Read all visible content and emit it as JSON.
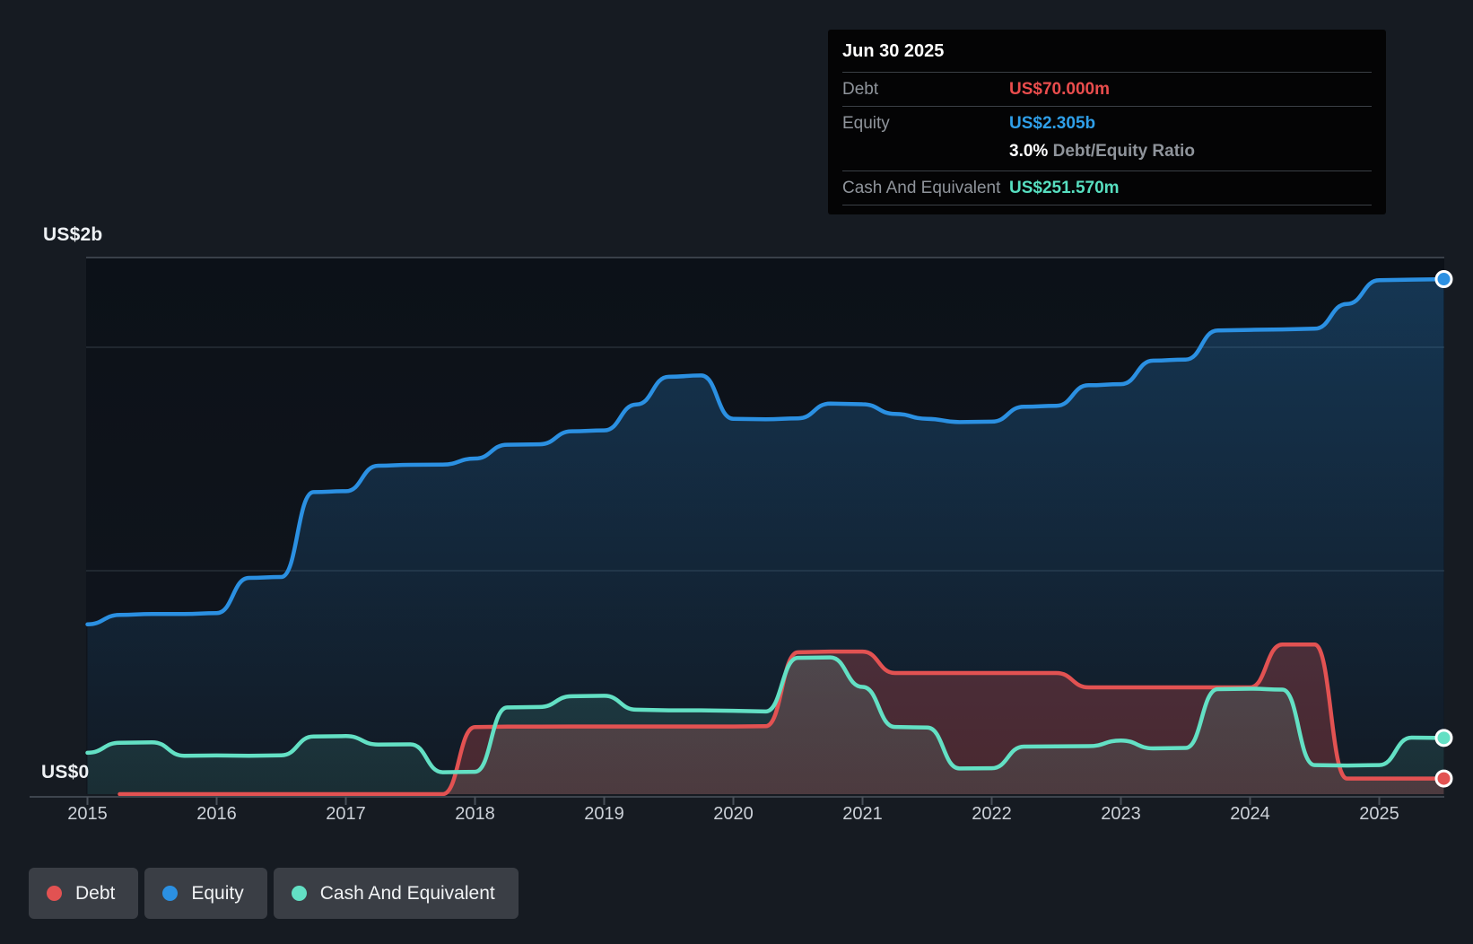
{
  "tooltip": {
    "date": "Jun 30 2025",
    "debt_label": "Debt",
    "debt_value": "US$70.000m",
    "equity_label": "Equity",
    "equity_value": "US$2.305b",
    "ratio_value": "3.0%",
    "ratio_label": "Debt/Equity Ratio",
    "cash_label": "Cash And Equivalent",
    "cash_value": "US$251.570m"
  },
  "y_axis": {
    "top": "US$2b",
    "bottom": "US$0"
  },
  "x_axis": {
    "years": [
      "2015",
      "2016",
      "2017",
      "2018",
      "2019",
      "2020",
      "2021",
      "2022",
      "2023",
      "2024",
      "2025"
    ]
  },
  "legend": [
    {
      "label": "Debt",
      "color": "#e25252"
    },
    {
      "label": "Equity",
      "color": "#2b90e2"
    },
    {
      "label": "Cash And Equivalent",
      "color": "#63e0c4"
    }
  ],
  "colors": {
    "debt": "#e25252",
    "equity": "#2b90e2",
    "cash": "#63e0c4",
    "debt_value_text": "#ea4d4d",
    "equity_value_text": "#2f9fe9",
    "cash_value_text": "#57dfc0"
  },
  "chart_data": {
    "type": "line",
    "title": "Debt to Equity History (US$ millions)",
    "x_range": [
      2015.0,
      2025.5
    ],
    "ylim": [
      0,
      2400
    ],
    "unit": "US$m",
    "grid_on": true,
    "legend_position": "bottom-left",
    "y_gridlines": [
      {
        "label": "US$2b",
        "value": 2000
      },
      {
        "label": "",
        "value": 1000
      },
      {
        "label": "US$0",
        "value": 0
      }
    ],
    "series": [
      {
        "name": "Equity",
        "color": "#2b90e2",
        "points": [
          [
            2015.0,
            760
          ],
          [
            2015.25,
            802
          ],
          [
            2015.5,
            806
          ],
          [
            2015.75,
            806
          ],
          [
            2016.0,
            810
          ],
          [
            2016.25,
            968
          ],
          [
            2016.5,
            972
          ],
          [
            2016.75,
            1352
          ],
          [
            2017.0,
            1356
          ],
          [
            2017.25,
            1470
          ],
          [
            2017.5,
            1474
          ],
          [
            2017.75,
            1475
          ],
          [
            2018.0,
            1502
          ],
          [
            2018.25,
            1564
          ],
          [
            2018.5,
            1566
          ],
          [
            2018.75,
            1624
          ],
          [
            2019.0,
            1628
          ],
          [
            2019.25,
            1744
          ],
          [
            2019.5,
            1868
          ],
          [
            2019.75,
            1874
          ],
          [
            2020.0,
            1680
          ],
          [
            2020.25,
            1678
          ],
          [
            2020.5,
            1682
          ],
          [
            2020.75,
            1748
          ],
          [
            2021.0,
            1745
          ],
          [
            2021.25,
            1702
          ],
          [
            2021.5,
            1680
          ],
          [
            2021.75,
            1665
          ],
          [
            2022.0,
            1667
          ],
          [
            2022.25,
            1734
          ],
          [
            2022.5,
            1738
          ],
          [
            2022.75,
            1830
          ],
          [
            2023.0,
            1835
          ],
          [
            2023.25,
            1940
          ],
          [
            2023.5,
            1945
          ],
          [
            2023.75,
            2075
          ],
          [
            2024.0,
            2078
          ],
          [
            2024.25,
            2080
          ],
          [
            2024.5,
            2083
          ],
          [
            2024.75,
            2194
          ],
          [
            2025.0,
            2300
          ],
          [
            2025.25,
            2303
          ],
          [
            2025.5,
            2305
          ]
        ]
      },
      {
        "name": "Debt",
        "color": "#e25252",
        "points": [
          [
            2015.25,
            0
          ],
          [
            2015.5,
            0
          ],
          [
            2015.75,
            0
          ],
          [
            2016.0,
            0
          ],
          [
            2016.25,
            0
          ],
          [
            2016.5,
            0
          ],
          [
            2016.75,
            0
          ],
          [
            2017.0,
            0
          ],
          [
            2017.25,
            0
          ],
          [
            2017.5,
            0
          ],
          [
            2017.75,
            0
          ],
          [
            2018.0,
            300
          ],
          [
            2018.25,
            302
          ],
          [
            2018.5,
            302
          ],
          [
            2018.75,
            303
          ],
          [
            2019.0,
            303
          ],
          [
            2019.25,
            303
          ],
          [
            2019.5,
            303
          ],
          [
            2019.75,
            303
          ],
          [
            2020.0,
            303
          ],
          [
            2020.25,
            304
          ],
          [
            2020.5,
            635
          ],
          [
            2020.75,
            638
          ],
          [
            2021.0,
            638
          ],
          [
            2021.25,
            542
          ],
          [
            2021.5,
            542
          ],
          [
            2021.75,
            542
          ],
          [
            2022.0,
            542
          ],
          [
            2022.25,
            542
          ],
          [
            2022.5,
            542
          ],
          [
            2022.75,
            478
          ],
          [
            2023.0,
            478
          ],
          [
            2023.25,
            478
          ],
          [
            2023.5,
            478
          ],
          [
            2023.75,
            478
          ],
          [
            2024.0,
            478
          ],
          [
            2024.25,
            670
          ],
          [
            2024.5,
            670
          ],
          [
            2024.75,
            70
          ],
          [
            2025.0,
            70
          ],
          [
            2025.25,
            70
          ],
          [
            2025.5,
            70
          ]
        ]
      },
      {
        "name": "Cash And Equivalent",
        "color": "#63e0c4",
        "points": [
          [
            2015.0,
            185
          ],
          [
            2015.25,
            230
          ],
          [
            2015.5,
            232
          ],
          [
            2015.75,
            172
          ],
          [
            2016.0,
            173
          ],
          [
            2016.25,
            172
          ],
          [
            2016.5,
            174
          ],
          [
            2016.75,
            258
          ],
          [
            2017.0,
            260
          ],
          [
            2017.25,
            222
          ],
          [
            2017.5,
            223
          ],
          [
            2017.75,
            98
          ],
          [
            2018.0,
            100
          ],
          [
            2018.25,
            388
          ],
          [
            2018.5,
            390
          ],
          [
            2018.75,
            438
          ],
          [
            2019.0,
            440
          ],
          [
            2019.25,
            378
          ],
          [
            2019.5,
            375
          ],
          [
            2019.75,
            375
          ],
          [
            2020.0,
            373
          ],
          [
            2020.25,
            370
          ],
          [
            2020.5,
            610
          ],
          [
            2020.75,
            612
          ],
          [
            2021.0,
            480
          ],
          [
            2021.25,
            301
          ],
          [
            2021.5,
            298
          ],
          [
            2021.75,
            115
          ],
          [
            2022.0,
            116
          ],
          [
            2022.25,
            213
          ],
          [
            2022.5,
            214
          ],
          [
            2022.75,
            215
          ],
          [
            2023.0,
            240
          ],
          [
            2023.25,
            205
          ],
          [
            2023.5,
            207
          ],
          [
            2023.75,
            470
          ],
          [
            2024.0,
            472
          ],
          [
            2024.25,
            468
          ],
          [
            2024.5,
            130
          ],
          [
            2024.75,
            128
          ],
          [
            2025.0,
            130
          ],
          [
            2025.25,
            253
          ],
          [
            2025.5,
            251.57
          ]
        ]
      }
    ]
  }
}
